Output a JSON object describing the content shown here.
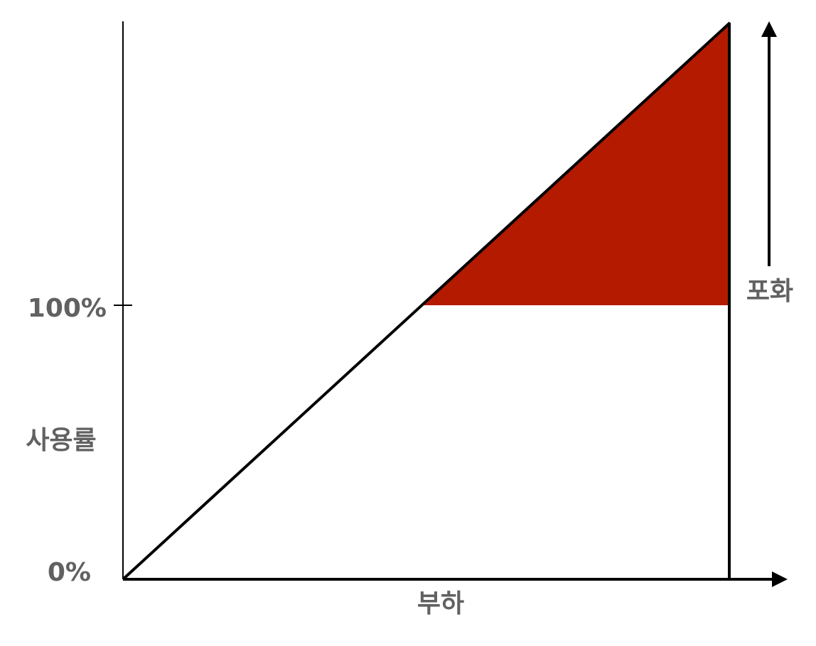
{
  "diagram": {
    "y_tick_top_label": "100%",
    "y_tick_bottom_label": "0%",
    "y_axis_label": "사용률",
    "x_axis_label": "부하",
    "saturation_label": "포화",
    "colors": {
      "saturation_fill": "#b31a00",
      "line": "#000000",
      "label_text": "#616161"
    }
  }
}
